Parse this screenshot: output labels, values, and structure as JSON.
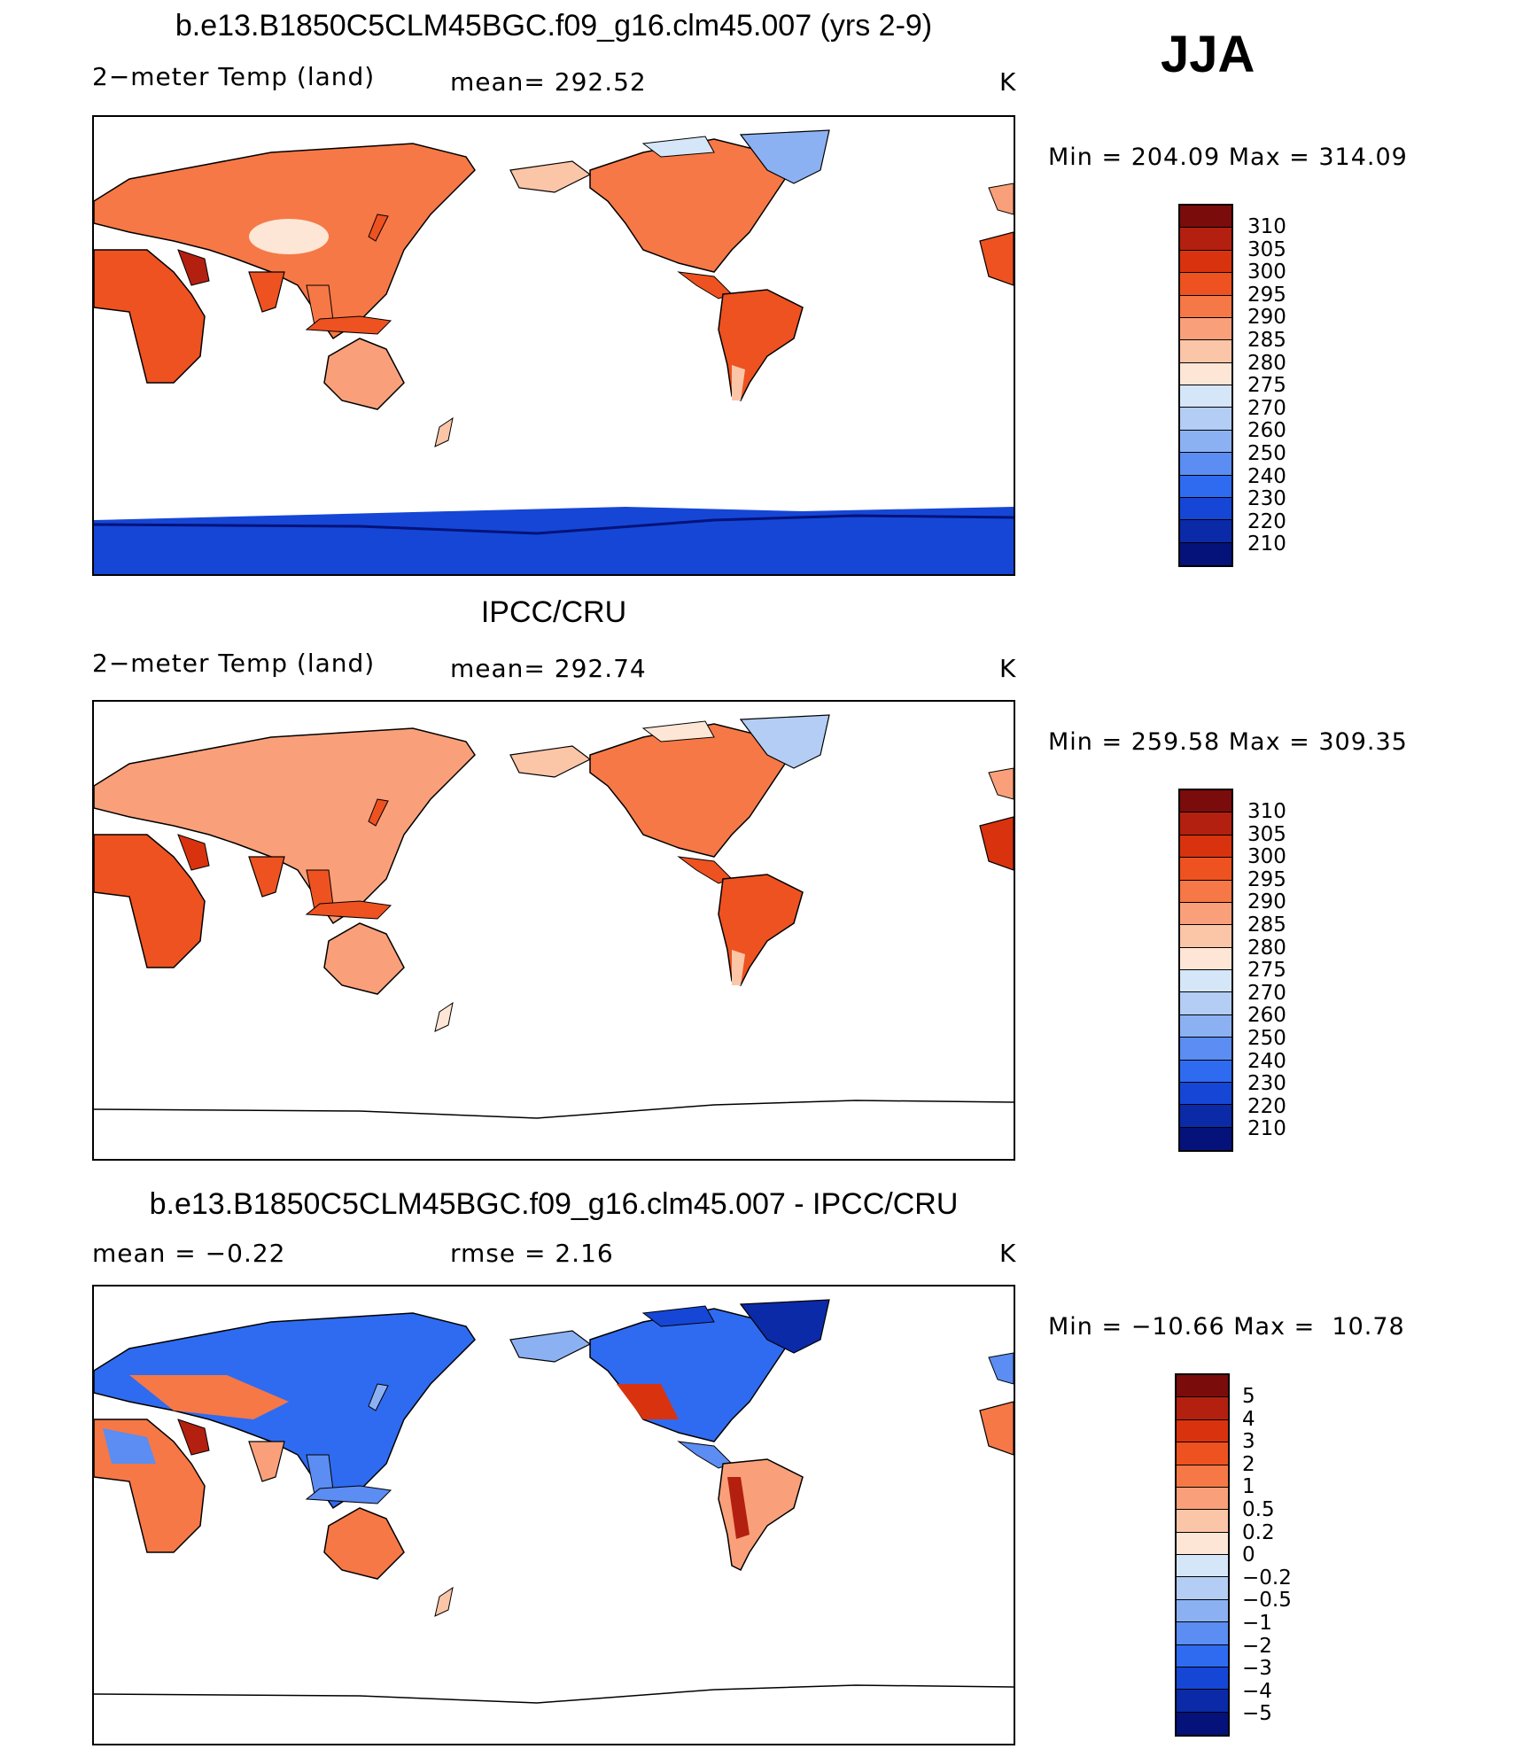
{
  "season": "JJA",
  "panels": [
    {
      "title": "b.e13.B1850C5CLM45BGC.f09_g16.clm45.007 (yrs 2-9)",
      "left_label": "2−meter Temp (land)",
      "mid_label": "mean= 292.52",
      "units": "K",
      "minmax": "Min = 204.09 Max = 314.09",
      "colorbar_labels": [
        "310",
        "305",
        "300",
        "295",
        "290",
        "285",
        "280",
        "275",
        "270",
        "260",
        "250",
        "240",
        "230",
        "220",
        "210"
      ],
      "has_antarctica_fill": true
    },
    {
      "title": "IPCC/CRU",
      "left_label": "2−meter Temp (land)",
      "mid_label": "mean= 292.74",
      "units": "K",
      "minmax": "Min = 259.58 Max = 309.35",
      "colorbar_labels": [
        "310",
        "305",
        "300",
        "295",
        "290",
        "285",
        "280",
        "275",
        "270",
        "260",
        "250",
        "240",
        "230",
        "220",
        "210"
      ],
      "has_antarctica_fill": false
    },
    {
      "title": "b.e13.B1850C5CLM45BGC.f09_g16.clm45.007 - IPCC/CRU",
      "left_label": "mean =   −0.22",
      "mid_label": "rmse =    2.16",
      "units": "K",
      "minmax": "Min = −10.66 Max =  10.78",
      "colorbar_labels": [
        "5",
        "4",
        "3",
        "2",
        "1",
        "0.5",
        "0.2",
        "0",
        "−0.2",
        "−0.5",
        "−1",
        "−2",
        "−3",
        "−4",
        "−5"
      ],
      "has_antarctica_fill": false
    }
  ],
  "colors": {
    "scale": [
      "#7a0c0c",
      "#b32010",
      "#d8330e",
      "#ee5220",
      "#f67846",
      "#f9a07a",
      "#fbc5a8",
      "#fde6d6",
      "#d5e6f8",
      "#b3cdf4",
      "#8cb1f3",
      "#5b8df2",
      "#2f6bf0",
      "#1646d6",
      "#0a2aa8",
      "#04127a"
    ]
  }
}
